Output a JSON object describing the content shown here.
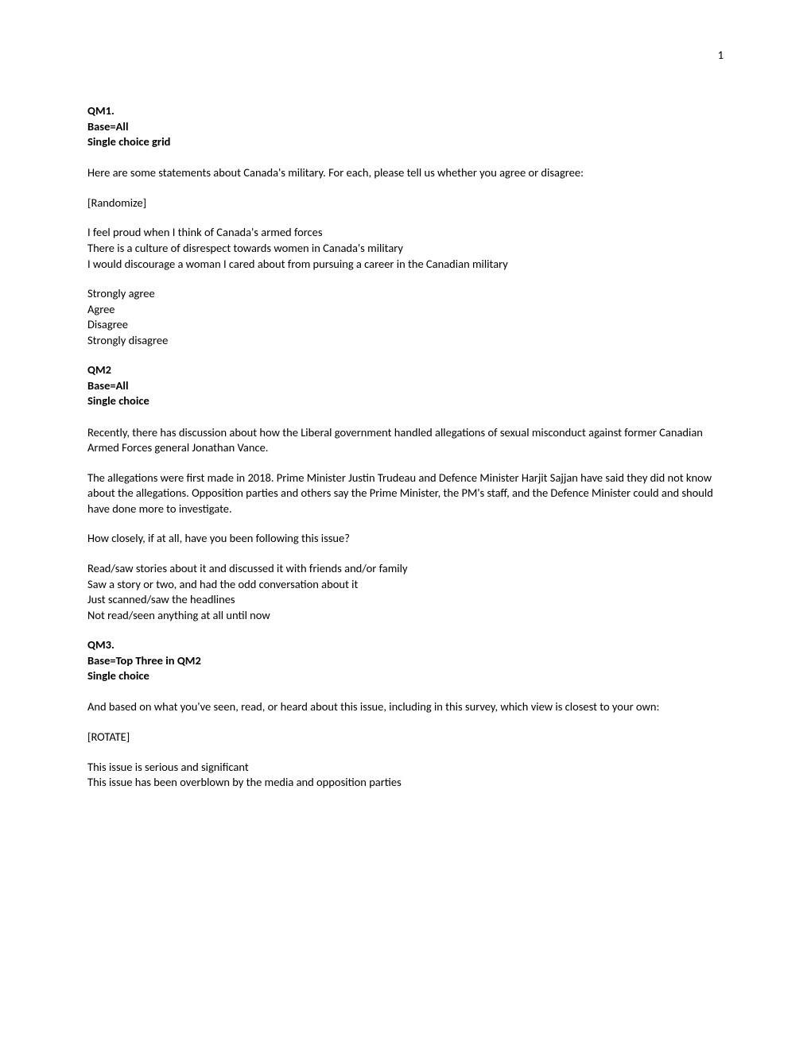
{
  "page_number": "1",
  "qm1": {
    "id": "QM1.",
    "base": "Base=All",
    "type": "Single choice grid",
    "intro": "Here are some statements about Canada's military. For each, please tell us whether you agree or disagree:",
    "randomize": "[Randomize]",
    "statements": [
      "I feel proud when I think of Canada's armed forces",
      "There is a culture of disrespect towards women in Canada's military",
      "I would discourage a woman I cared about from pursuing a career in the Canadian military"
    ],
    "scale": [
      "Strongly agree",
      "Agree",
      "Disagree",
      "Strongly disagree"
    ]
  },
  "qm2": {
    "id": "QM2",
    "base": "Base=All",
    "type": "Single choice",
    "para1": "Recently, there has discussion about how the Liberal government handled allegations of sexual misconduct against former Canadian Armed Forces general Jonathan Vance.",
    "para2": "The allegations were first made in 2018. Prime Minister Justin Trudeau and Defence Minister Harjit Sajjan have said they did not know about the allegations. Opposition parties and others say the Prime Minister, the PM's staff, and the Defence Minister could and should have done more to investigate.",
    "question": "How closely, if at all, have you been following this issue?",
    "options": [
      "Read/saw stories about it and discussed it with friends and/or family",
      "Saw a story or two, and had the odd conversation about it",
      "Just scanned/saw the headlines",
      "Not read/seen anything at all until now"
    ]
  },
  "qm3": {
    "id": "QM3.",
    "base": "Base=Top Three in QM2",
    "type": "Single choice",
    "question": "And based on what you've seen, read, or heard about this issue, including in this survey, which view is closest to your own:",
    "rotate": "[ROTATE]",
    "options": [
      "This issue is serious and significant",
      "This issue has been overblown by the media and opposition parties"
    ]
  }
}
